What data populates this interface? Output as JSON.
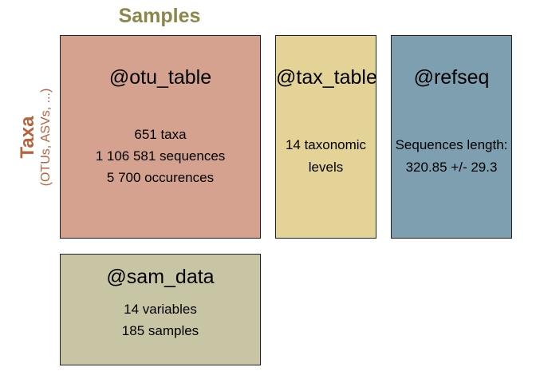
{
  "samples_label": "Samples",
  "taxa_label": "Taxa",
  "taxa_sublabel": "(OTUs, ASVs, ...)",
  "colors": {
    "otu_table": "#d4a28f",
    "tax_table": "#e3d396",
    "refseq": "#7e9fb0",
    "sam_data": "#c7c5a4",
    "samples_label": "#8a8748",
    "taxa_label": "#b8623c"
  },
  "boxes": {
    "otu_table": {
      "name": "@otu_table",
      "lines": [
        "651 taxa",
        "1 106 581 sequences",
        "5 700 occurences"
      ]
    },
    "tax_table": {
      "name": "@tax_table",
      "lines": [
        "14 taxonomic",
        "levels"
      ]
    },
    "refseq": {
      "name": "@refseq",
      "lines": [
        "Sequences length:",
        "320.85 +/- 29.3"
      ]
    },
    "sam_data": {
      "name": "@sam_data",
      "lines": [
        "14 variables",
        "185 samples"
      ]
    }
  }
}
